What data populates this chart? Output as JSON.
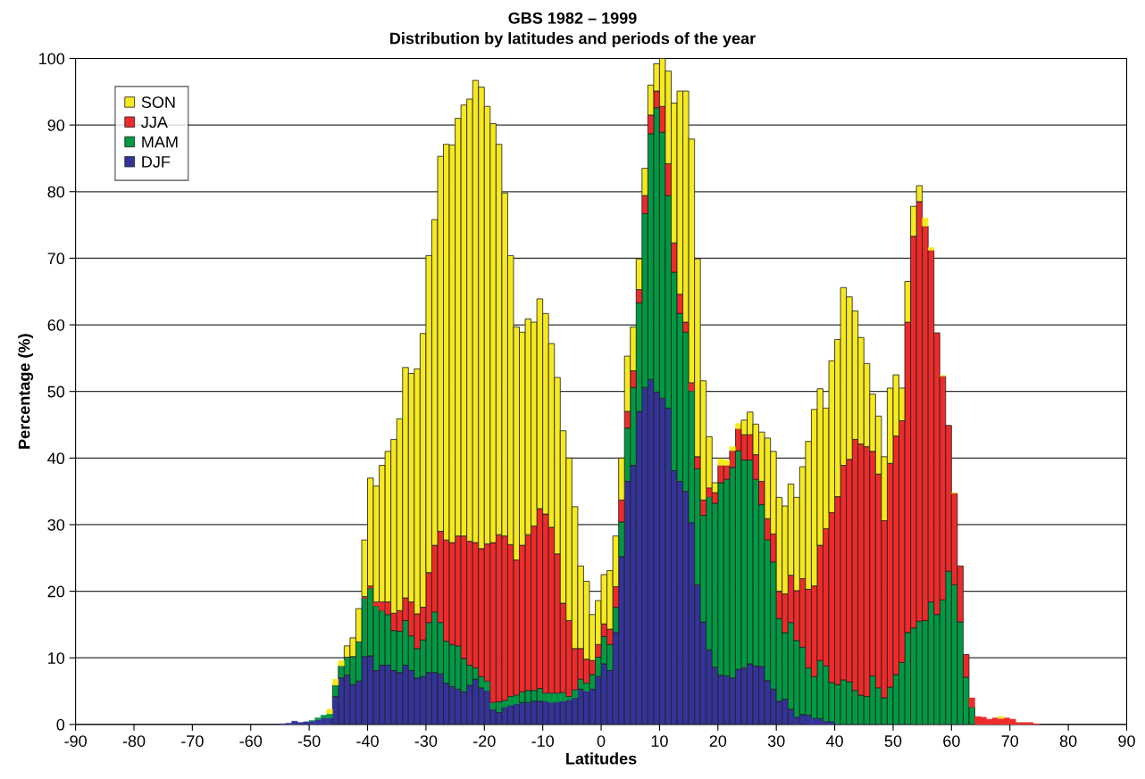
{
  "chart_data": {
    "type": "bar",
    "stacked": true,
    "title": "GBS 1982 – 1999",
    "subtitle": "Distribution by latitudes and periods of the year",
    "xlabel": "Latitudes",
    "ylabel": "Percentage (%)",
    "x": [
      -54.5,
      -53.5,
      -52.5,
      -51.5,
      -50.5,
      -49.5,
      -48.5,
      -47.5,
      -46.5,
      -45.5,
      -44.5,
      -43.5,
      -42.5,
      -41.5,
      -40.5,
      -39.5,
      -38.5,
      -37.5,
      -36.5,
      -35.5,
      -34.5,
      -33.5,
      -32.5,
      -31.5,
      -30.5,
      -29.5,
      -28.5,
      -27.5,
      -26.5,
      -25.5,
      -24.5,
      -23.5,
      -22.5,
      -21.5,
      -20.5,
      -19.5,
      -18.5,
      -17.5,
      -16.5,
      -15.5,
      -14.5,
      -13.5,
      -12.5,
      -11.5,
      -10.5,
      -9.5,
      -8.5,
      -7.5,
      -6.5,
      -5.5,
      -4.5,
      -3.5,
      -2.5,
      -1.5,
      -0.5,
      0.5,
      1.5,
      2.5,
      3.5,
      4.5,
      5.5,
      6.5,
      7.5,
      8.5,
      9.5,
      10.5,
      11.5,
      12.5,
      13.5,
      14.5,
      15.5,
      16.5,
      17.5,
      18.5,
      19.5,
      20.5,
      21.5,
      22.5,
      23.5,
      24.5,
      25.5,
      26.5,
      27.5,
      28.5,
      29.5,
      30.5,
      31.5,
      32.5,
      33.5,
      34.5,
      35.5,
      36.5,
      37.5,
      38.5,
      39.5,
      40.5,
      41.5,
      42.5,
      43.5,
      44.5,
      45.5,
      46.5,
      47.5,
      48.5,
      49.5,
      50.5,
      51.5,
      52.5,
      53.5,
      54.5,
      55.5,
      56.5,
      57.5,
      58.5,
      59.5,
      60.5,
      61.5,
      62.5,
      63.5,
      64.5,
      65.5,
      66.5,
      67.5,
      68.5,
      69.5,
      70.5,
      71.5,
      72.5,
      73.5,
      74.5
    ],
    "series": [
      {
        "name": "DJF",
        "color": "#333399",
        "values": [
          0.1,
          0.2,
          0.5,
          0.3,
          0.4,
          0.5,
          0.7,
          1.0,
          1.0,
          4.2,
          7.0,
          7.4,
          6.0,
          6.5,
          10.2,
          10.3,
          8.1,
          8.9,
          8.9,
          8.1,
          7.8,
          8.9,
          8.1,
          7.0,
          7.2,
          7.8,
          7.8,
          7.6,
          6.2,
          5.7,
          5.3,
          4.9,
          5.9,
          6.8,
          5.5,
          5.1,
          2.3,
          1.8,
          2.6,
          2.9,
          3.1,
          3.3,
          3.3,
          3.5,
          3.5,
          3.5,
          3.3,
          3.4,
          3.5,
          3.7,
          4.0,
          5.3,
          5.0,
          5.3,
          7.2,
          9.1,
          8.1,
          13.8,
          25.2,
          36.5,
          38.9,
          47.0,
          50.6,
          51.8,
          49.9,
          49.0,
          47.5,
          38.1,
          36.5,
          35.0,
          30.3,
          21.0,
          15.4,
          11.2,
          8.6,
          7.4,
          7.3,
          7.0,
          8.3,
          8.5,
          9.1,
          8.8,
          8.7,
          6.6,
          5.3,
          3.5,
          3.8,
          2.3,
          1.1,
          1.5,
          1.4,
          0.9,
          0.9,
          0.4,
          0.4,
          null,
          0,
          0,
          0,
          0,
          0,
          0,
          0,
          0,
          0,
          0,
          0,
          0,
          0,
          0,
          0,
          0,
          0,
          0,
          0,
          0,
          0,
          0,
          0,
          0,
          0,
          0,
          0,
          0,
          0,
          0,
          0,
          0,
          0,
          0
        ]
      },
      {
        "name": "MAM",
        "color": "#009944",
        "values": [
          0,
          0,
          0,
          0,
          0,
          0.1,
          0.3,
          0.4,
          0.6,
          1.7,
          1.8,
          2.7,
          4.2,
          5.9,
          8.8,
          10.2,
          9.7,
          8.2,
          7.6,
          6.0,
          6.2,
          6.7,
          5.2,
          4.4,
          5.5,
          7.5,
          9.1,
          7.7,
          6.3,
          6.3,
          6.5,
          5.0,
          3.0,
          1.7,
          1.7,
          1.4,
          1.0,
          1.6,
          1.0,
          1.3,
          1.3,
          1.6,
          1.8,
          1.6,
          1.9,
          1.2,
          1.4,
          1.3,
          1.3,
          0.5,
          1.2,
          1.5,
          1.2,
          2.2,
          2.9,
          4.1,
          3.9,
          3.8,
          5.2,
          8.0,
          11.7,
          16.3,
          26.1,
          36.9,
          42.7,
          39.9,
          31.9,
          29.8,
          25.2,
          23.9,
          19.8,
          17.4,
          16.0,
          23.0,
          24.6,
          28.9,
          29.5,
          31.6,
          32.8,
          31.2,
          30.6,
          28.0,
          24.3,
          21.1,
          19.1,
          12.4,
          10.0,
          13.0,
          11.5,
          10.1,
          7.1,
          6.3,
          8.7,
          8.4,
          5.9,
          6.0,
          6.7,
          6.4,
          5.1,
          4.4,
          4.2,
          7.3,
          5.5,
          4.0,
          5.6,
          7.5,
          9.3,
          13.8,
          14.5,
          15.5,
          15.6,
          18.4,
          16.5,
          18.7,
          23.0,
          21.0,
          15.4,
          7.1,
          2.6,
          null,
          0,
          0,
          0,
          0,
          0,
          0,
          0,
          0,
          0,
          0
        ]
      },
      {
        "name": "JJA",
        "color": "#ee2a2a",
        "values": [
          0,
          0,
          0,
          0,
          0,
          0,
          0,
          0,
          0,
          0,
          0,
          0,
          0,
          0,
          0.2,
          0.3,
          0.6,
          1.3,
          1.9,
          2.6,
          3.1,
          3.4,
          5.1,
          5.2,
          4.9,
          7.5,
          10.0,
          13.7,
          15.2,
          15.3,
          16.5,
          18.4,
          18.6,
          18.8,
          19.2,
          20.6,
          24.0,
          25.1,
          24.7,
          22.8,
          20.3,
          22.0,
          23.4,
          24.7,
          27.0,
          26.9,
          24.9,
          20.9,
          13.4,
          11.4,
          6.2,
          4.6,
          3.6,
          2.1,
          1.9,
          1.9,
          2.3,
          3.1,
          3.3,
          2.5,
          2.5,
          2.0,
          2.7,
          2.8,
          2.5,
          3.9,
          4.8,
          4.4,
          2.9,
          1.5,
          1.2,
          1.8,
          2.3,
          1.3,
          1.6,
          2.6,
          2.1,
          2.5,
          3.3,
          3.8,
          3.8,
          3.7,
          3.5,
          3.2,
          4.2,
          4.1,
          5.8,
          7.1,
          7.5,
          10.3,
          11.8,
          13.6,
          17.3,
          20.6,
          25.5,
          28.2,
          32.2,
          33.4,
          37.7,
          37.7,
          37.5,
          33.7,
          32.1,
          26.6,
          33.6,
          35.8,
          36.3,
          46.6,
          58.8,
          63.0,
          59.2,
          52.8,
          42.3,
          33.6,
          21.9,
          13.7,
          8.4,
          3.4,
          1.4,
          1.2,
          1.1,
          0.8,
          1.0,
          0.9,
          1.0,
          0.8,
          0.3,
          0.3,
          0.3,
          0.1
        ]
      },
      {
        "name": "SON",
        "color": "#f6e91e",
        "values": [
          0,
          0,
          0,
          0,
          0,
          0,
          0,
          0,
          0.7,
          0.9,
          0.8,
          1.7,
          2.8,
          5.0,
          8.5,
          16.2,
          17.4,
          20.5,
          22.6,
          26.1,
          28.8,
          34.6,
          34.3,
          36.8,
          41.1,
          47.6,
          48.9,
          56.3,
          59.4,
          59.7,
          62.7,
          64.7,
          66.4,
          69.4,
          69.3,
          65.7,
          62.9,
          58.6,
          51.5,
          43.4,
          35.0,
          32.0,
          32.4,
          30.6,
          31.5,
          30.1,
          27.6,
          26.5,
          25.9,
          24.4,
          21.3,
          12.4,
          11.7,
          6.9,
          6.6,
          7.4,
          8.8,
          7.6,
          6.3,
          8.3,
          6.6,
          4.6,
          4.1,
          4.5,
          4.1,
          7.2,
          13.9,
          21.0,
          30.5,
          34.7,
          36.6,
          29.7,
          17.9,
          7.7,
          1.5,
          1.0,
          0.8,
          0.6,
          0.8,
          2.2,
          3.4,
          4.6,
          7.4,
          12.1,
          12.4,
          14.1,
          13.2,
          13.7,
          14.0,
          16.8,
          22.2,
          26.5,
          23.5,
          18.1,
          22.8,
          23.6,
          26.7,
          24.4,
          19.3,
          16.0,
          12.5,
          8.6,
          8.7,
          9.6,
          11.3,
          9.2,
          4.9,
          6.1,
          4.5,
          2.4,
          1.2,
          0.4,
          0,
          0.1,
          0,
          0.1,
          0,
          0,
          0,
          0,
          0,
          0,
          0,
          0.3,
          0,
          0,
          0,
          0,
          0,
          0
        ]
      }
    ],
    "xlim": [
      -90,
      90
    ],
    "xticks": [
      -90,
      -80,
      -70,
      -60,
      -50,
      -40,
      -30,
      -20,
      -10,
      0,
      10,
      20,
      30,
      40,
      50,
      60,
      70,
      80,
      90
    ],
    "ylim": [
      0,
      100
    ],
    "yticks": [
      0,
      10,
      20,
      30,
      40,
      50,
      60,
      70,
      80,
      90,
      100
    ],
    "grid": "y",
    "legend": "top left"
  }
}
